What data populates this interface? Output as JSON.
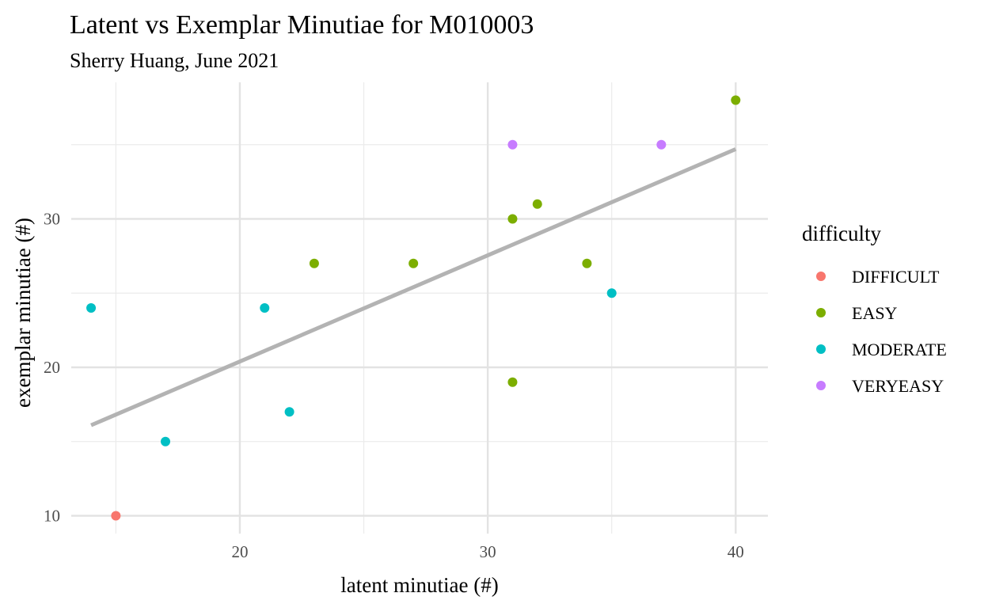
{
  "chart_data": {
    "type": "scatter",
    "title": "Latent vs Exemplar Minutiae for M010003",
    "subtitle": "Sherry Huang, June 2021",
    "xlabel": "latent minutiae (#)",
    "ylabel": "exemplar minutiae (#)",
    "xlim": [
      13.2,
      41.3
    ],
    "ylim": [
      8.8,
      39.2
    ],
    "x_ticks": [
      20,
      30,
      40
    ],
    "y_ticks": [
      10,
      20,
      30
    ],
    "x_minor": [
      15,
      25,
      35
    ],
    "y_minor": [
      15,
      25,
      35
    ],
    "grid": true,
    "legend": {
      "title": "difficulty",
      "position": "right",
      "entries": [
        {
          "label": "DIFFICULT",
          "color": "#F8766D"
        },
        {
          "label": "EASY",
          "color": "#7CAE00"
        },
        {
          "label": "MODERATE",
          "color": "#00BFC4"
        },
        {
          "label": "VERYEASY",
          "color": "#C77CFF"
        }
      ]
    },
    "series": [
      {
        "name": "DIFFICULT",
        "color": "#F8766D",
        "points": [
          [
            15,
            10
          ]
        ]
      },
      {
        "name": "EASY",
        "color": "#7CAE00",
        "points": [
          [
            23,
            27
          ],
          [
            27,
            27
          ],
          [
            31,
            30
          ],
          [
            31,
            19
          ],
          [
            32,
            31
          ],
          [
            34,
            27
          ],
          [
            40,
            38
          ]
        ]
      },
      {
        "name": "MODERATE",
        "color": "#00BFC4",
        "points": [
          [
            14,
            24
          ],
          [
            17,
            15
          ],
          [
            21,
            24
          ],
          [
            22,
            17
          ],
          [
            35,
            25
          ]
        ]
      },
      {
        "name": "VERYEASY",
        "color": "#C77CFF",
        "points": [
          [
            31,
            35
          ],
          [
            37,
            35
          ]
        ]
      }
    ],
    "trend_line": {
      "color": "#b3b3b3",
      "x": [
        14,
        40
      ],
      "y": [
        16.1,
        34.7
      ]
    }
  }
}
